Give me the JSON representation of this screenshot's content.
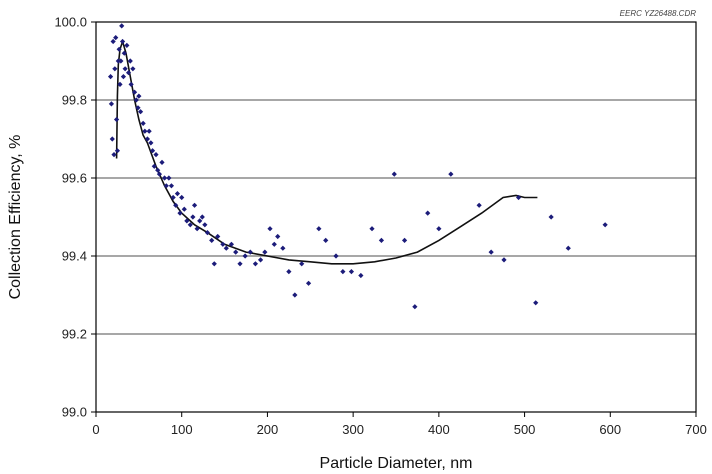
{
  "chart_data": {
    "type": "scatter",
    "corner_label": "EERC YZ26488.CDR",
    "xlabel": "Particle Diameter, nm",
    "ylabel": "Collection Efficiency, %",
    "xlim": [
      0,
      700
    ],
    "ylim": [
      99.0,
      100.0
    ],
    "x_ticks": [
      0,
      100,
      200,
      300,
      400,
      500,
      600,
      700
    ],
    "x_tick_labels": [
      "0",
      "100",
      "200",
      "300",
      "400",
      "500",
      "600",
      "700"
    ],
    "y_ticks": [
      99.0,
      99.2,
      99.4,
      99.6,
      99.8,
      100.0
    ],
    "y_tick_labels": [
      "99.0",
      "99.2",
      "99.4",
      "99.6",
      "99.8",
      "100.0"
    ],
    "grid": "horizontal",
    "marker_color": "#1c1c7a",
    "line_color": "#111111",
    "series": [
      {
        "points": [
          [
            17,
            99.86
          ],
          [
            18,
            99.79
          ],
          [
            19,
            99.7
          ],
          [
            20,
            99.95
          ],
          [
            21,
            99.66
          ],
          [
            22,
            99.88
          ],
          [
            23,
            99.96
          ],
          [
            24,
            99.75
          ],
          [
            25,
            99.67
          ],
          [
            26,
            99.9
          ],
          [
            27,
            99.93
          ],
          [
            28,
            99.84
          ],
          [
            29,
            99.9
          ],
          [
            30,
            99.99
          ],
          [
            31,
            99.95
          ],
          [
            32,
            99.86
          ],
          [
            33,
            99.92
          ],
          [
            34,
            99.88
          ],
          [
            36,
            99.94
          ],
          [
            38,
            99.87
          ],
          [
            40,
            99.9
          ],
          [
            41,
            99.84
          ],
          [
            43,
            99.88
          ],
          [
            45,
            99.82
          ],
          [
            47,
            99.8
          ],
          [
            49,
            99.78
          ],
          [
            50,
            99.81
          ],
          [
            52,
            99.77
          ],
          [
            55,
            99.74
          ],
          [
            57,
            99.72
          ],
          [
            60,
            99.7
          ],
          [
            62,
            99.72
          ],
          [
            64,
            99.69
          ],
          [
            66,
            99.67
          ],
          [
            68,
            99.63
          ],
          [
            70,
            99.66
          ],
          [
            72,
            99.62
          ],
          [
            74,
            99.61
          ],
          [
            77,
            99.64
          ],
          [
            80,
            99.6
          ],
          [
            82,
            99.58
          ],
          [
            85,
            99.6
          ],
          [
            88,
            99.58
          ],
          [
            90,
            99.55
          ],
          [
            93,
            99.53
          ],
          [
            95,
            99.56
          ],
          [
            98,
            99.51
          ],
          [
            100,
            99.55
          ],
          [
            103,
            99.52
          ],
          [
            106,
            99.49
          ],
          [
            110,
            99.48
          ],
          [
            113,
            99.5
          ],
          [
            115,
            99.53
          ],
          [
            118,
            99.47
          ],
          [
            121,
            99.49
          ],
          [
            124,
            99.5
          ],
          [
            127,
            99.48
          ],
          [
            130,
            99.46
          ],
          [
            135,
            99.44
          ],
          [
            138,
            99.38
          ],
          [
            142,
            99.45
          ],
          [
            148,
            99.43
          ],
          [
            152,
            99.42
          ],
          [
            158,
            99.43
          ],
          [
            163,
            99.41
          ],
          [
            168,
            99.38
          ],
          [
            174,
            99.4
          ],
          [
            180,
            99.41
          ],
          [
            186,
            99.38
          ],
          [
            192,
            99.39
          ],
          [
            197,
            99.41
          ],
          [
            203,
            99.47
          ],
          [
            208,
            99.43
          ],
          [
            212,
            99.45
          ],
          [
            218,
            99.42
          ],
          [
            225,
            99.36
          ],
          [
            232,
            99.3
          ],
          [
            240,
            99.38
          ],
          [
            248,
            99.33
          ],
          [
            260,
            99.47
          ],
          [
            268,
            99.44
          ],
          [
            280,
            99.4
          ],
          [
            288,
            99.36
          ],
          [
            298,
            99.36
          ],
          [
            309,
            99.35
          ],
          [
            322,
            99.47
          ],
          [
            333,
            99.44
          ],
          [
            348,
            99.61
          ],
          [
            360,
            99.44
          ],
          [
            372,
            99.27
          ],
          [
            387,
            99.51
          ],
          [
            400,
            99.47
          ],
          [
            414,
            99.61
          ],
          [
            447,
            99.53
          ],
          [
            461,
            99.41
          ],
          [
            476,
            99.39
          ],
          [
            493,
            99.55
          ],
          [
            513,
            99.28
          ],
          [
            531,
            99.5
          ],
          [
            551,
            99.42
          ],
          [
            594,
            99.48
          ]
        ]
      }
    ],
    "fit_line": [
      [
        24,
        99.65
      ],
      [
        25,
        99.81
      ],
      [
        26,
        99.89
      ],
      [
        28,
        99.93
      ],
      [
        31,
        99.95
      ],
      [
        35,
        99.92
      ],
      [
        40,
        99.86
      ],
      [
        45,
        99.8
      ],
      [
        50,
        99.75
      ],
      [
        55,
        99.71
      ],
      [
        60,
        99.69
      ],
      [
        70,
        99.63
      ],
      [
        80,
        99.58
      ],
      [
        90,
        99.54
      ],
      [
        100,
        99.51
      ],
      [
        115,
        99.48
      ],
      [
        130,
        99.46
      ],
      [
        150,
        99.43
      ],
      [
        175,
        99.41
      ],
      [
        200,
        99.4
      ],
      [
        225,
        99.39
      ],
      [
        250,
        99.385
      ],
      [
        275,
        99.38
      ],
      [
        300,
        99.38
      ],
      [
        325,
        99.385
      ],
      [
        350,
        99.395
      ],
      [
        375,
        99.41
      ],
      [
        400,
        99.44
      ],
      [
        425,
        99.475
      ],
      [
        450,
        99.51
      ],
      [
        475,
        99.55
      ],
      [
        490,
        99.555
      ],
      [
        500,
        99.55
      ],
      [
        515,
        99.55
      ]
    ]
  }
}
